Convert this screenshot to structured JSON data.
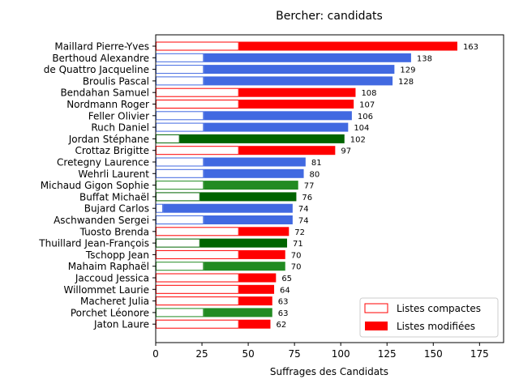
{
  "chart_data": {
    "type": "bar",
    "orientation": "horizontal",
    "stacked": true,
    "title": "Bercher: candidats",
    "xlabel": "Suffrages des Candidats",
    "ylabel": "",
    "xlim": [
      0,
      188
    ],
    "xticks": [
      0,
      25,
      50,
      75,
      100,
      125,
      150,
      175
    ],
    "legend_position": "lower right",
    "categories": [
      "Maillard Pierre-Yves",
      "Berthoud Alexandre",
      "de Quattro Jacqueline",
      "Broulis Pascal",
      "Bendahan Samuel",
      "Nordmann Roger",
      "Feller Olivier",
      "Ruch Daniel",
      "Jordan Stéphane",
      "Crottaz Brigitte",
      "Cretegny Laurence",
      "Wehrli Laurent",
      "Michaud Gigon Sophie",
      "Buffat Michaël",
      "Bujard Carlos",
      "Aschwanden Sergei",
      "Tuosto Brenda",
      "Thuillard Jean-François",
      "Tschopp Jean",
      "Mahaim Raphaël",
      "Jaccoud Jessica",
      "Willommet Laurie",
      "Macheret Julia",
      "Porchet Léonore",
      "Jaton Laure"
    ],
    "colors": [
      "#ff0000",
      "#4169e1",
      "#4169e1",
      "#4169e1",
      "#ff0000",
      "#ff0000",
      "#4169e1",
      "#4169e1",
      "#006400",
      "#ff0000",
      "#4169e1",
      "#4169e1",
      "#228b22",
      "#006400",
      "#4169e1",
      "#4169e1",
      "#ff0000",
      "#006400",
      "#ff0000",
      "#228b22",
      "#ff0000",
      "#ff0000",
      "#ff0000",
      "#228b22",
      "#ff0000"
    ],
    "series": [
      {
        "name": "Listes compactes",
        "style": "outline",
        "values": [
          45,
          26,
          26,
          26,
          45,
          45,
          26,
          26,
          13,
          45,
          26,
          26,
          26,
          24,
          4,
          26,
          45,
          24,
          45,
          26,
          45,
          45,
          45,
          26,
          45
        ]
      },
      {
        "name": "Listes modifiées",
        "style": "filled",
        "values": [
          118,
          112,
          103,
          102,
          63,
          62,
          80,
          78,
          89,
          52,
          55,
          54,
          51,
          52,
          70,
          48,
          27,
          47,
          25,
          44,
          20,
          19,
          18,
          37,
          17
        ]
      }
    ],
    "totals": [
      163,
      138,
      129,
      128,
      108,
      107,
      106,
      104,
      102,
      97,
      81,
      80,
      77,
      76,
      74,
      74,
      72,
      71,
      70,
      70,
      65,
      64,
      63,
      63,
      62
    ]
  }
}
